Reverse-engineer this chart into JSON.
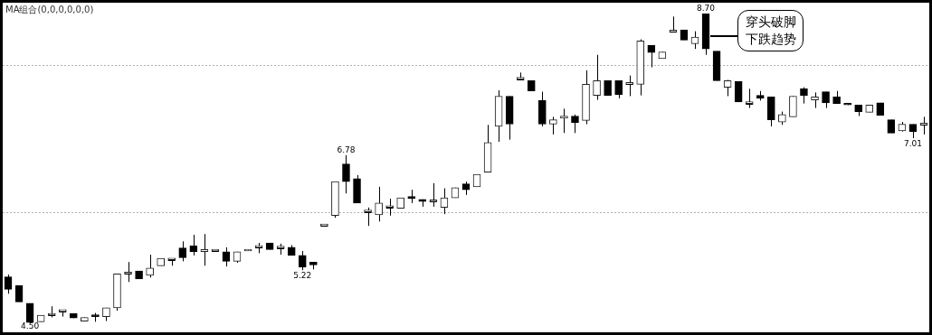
{
  "chart_data": {
    "type": "candlestick",
    "title": "MA组合(0,0,0,0,0,0)",
    "categories": [
      null,
      null,
      null,
      null,
      null,
      null,
      null,
      null,
      null,
      null,
      null,
      null,
      null,
      null,
      null,
      null,
      null,
      null,
      null,
      null,
      null,
      null,
      null,
      null,
      null,
      null,
      null,
      null,
      null,
      null,
      null,
      null,
      null,
      null,
      null,
      null,
      null,
      null,
      null,
      null,
      null,
      null,
      null,
      null,
      null,
      null,
      null,
      null,
      null,
      null,
      null,
      null,
      null,
      null,
      null,
      null,
      null,
      null,
      null,
      null,
      null,
      null,
      null,
      null,
      null,
      null,
      null,
      null,
      null,
      null,
      null,
      null,
      null,
      null,
      null,
      null,
      null,
      null,
      null,
      null,
      null,
      null,
      null,
      null,
      null
    ],
    "ohlc": [
      [
        5.13,
        5.16,
        4.9,
        4.96
      ],
      [
        5.01,
        5.01,
        4.79,
        4.79
      ],
      [
        4.77,
        4.77,
        4.5,
        4.51
      ],
      [
        4.52,
        4.61,
        4.52,
        4.61
      ],
      [
        4.61,
        4.73,
        4.58,
        4.61
      ],
      [
        4.66,
        4.67,
        4.59,
        4.66
      ],
      [
        4.63,
        4.63,
        4.57,
        4.57
      ],
      [
        4.53,
        4.58,
        4.53,
        4.58
      ],
      [
        4.61,
        4.64,
        4.52,
        4.59
      ],
      [
        4.59,
        4.71,
        4.53,
        4.71
      ],
      [
        4.71,
        5.17,
        4.67,
        5.17
      ],
      [
        5.17,
        5.33,
        5.06,
        5.17
      ],
      [
        5.21,
        5.21,
        5.1,
        5.1
      ],
      [
        5.15,
        5.43,
        5.12,
        5.25
      ],
      [
        5.28,
        5.38,
        5.28,
        5.38
      ],
      [
        5.36,
        5.36,
        5.28,
        5.36
      ],
      [
        5.52,
        5.61,
        5.34,
        5.39
      ],
      [
        5.55,
        5.7,
        5.42,
        5.47
      ],
      [
        5.47,
        5.71,
        5.28,
        5.5
      ],
      [
        5.48,
        5.48,
        5.48,
        5.48
      ],
      [
        5.47,
        5.53,
        5.27,
        5.34
      ],
      [
        5.34,
        5.47,
        5.32,
        5.47
      ],
      [
        5.48,
        5.5,
        5.48,
        5.5
      ],
      [
        5.53,
        5.59,
        5.45,
        5.53
      ],
      [
        5.59,
        5.59,
        5.5,
        5.5
      ],
      [
        5.52,
        5.58,
        5.43,
        5.52
      ],
      [
        5.53,
        5.56,
        5.42,
        5.42
      ],
      [
        5.42,
        5.48,
        5.22,
        5.26
      ],
      [
        5.33,
        5.33,
        5.23,
        5.29
      ],
      [
        5.82,
        5.82,
        5.82,
        5.82
      ],
      [
        5.96,
        6.42,
        5.93,
        6.42
      ],
      [
        6.66,
        6.78,
        6.26,
        6.42
      ],
      [
        6.46,
        6.51,
        6.13,
        6.13
      ],
      [
        6.01,
        6.07,
        5.82,
        6.01
      ],
      [
        5.97,
        6.35,
        5.88,
        6.13
      ],
      [
        6.07,
        6.19,
        5.96,
        6.07
      ],
      [
        6.06,
        6.2,
        6.06,
        6.2
      ],
      [
        6.22,
        6.31,
        6.13,
        6.19
      ],
      [
        6.18,
        6.18,
        6.08,
        6.15
      ],
      [
        6.15,
        6.4,
        6.08,
        6.15
      ],
      [
        6.07,
        6.33,
        5.98,
        6.2
      ],
      [
        6.2,
        6.34,
        6.2,
        6.34
      ],
      [
        6.39,
        6.42,
        6.24,
        6.31
      ],
      [
        6.35,
        6.52,
        6.35,
        6.52
      ],
      [
        6.55,
        7.19,
        6.55,
        6.95
      ],
      [
        7.17,
        7.66,
        6.96,
        7.58
      ],
      [
        7.58,
        7.58,
        6.99,
        7.2
      ],
      [
        7.81,
        7.9,
        7.81,
        7.81
      ],
      [
        7.79,
        7.79,
        7.65,
        7.65
      ],
      [
        7.52,
        7.64,
        7.17,
        7.2
      ],
      [
        7.2,
        7.3,
        7.06,
        7.26
      ],
      [
        7.28,
        7.41,
        7.08,
        7.31
      ],
      [
        7.31,
        7.33,
        7.08,
        7.22
      ],
      [
        7.25,
        7.93,
        7.2,
        7.74
      ],
      [
        7.59,
        8.14,
        7.53,
        7.79
      ],
      [
        7.79,
        7.79,
        7.59,
        7.59
      ],
      [
        7.79,
        7.79,
        7.55,
        7.6
      ],
      [
        7.74,
        7.86,
        7.58,
        7.74
      ],
      [
        7.74,
        8.35,
        7.59,
        8.33
      ],
      [
        8.27,
        8.27,
        7.97,
        8.17
      ],
      [
        8.09,
        8.18,
        8.09,
        8.18
      ],
      [
        8.45,
        8.66,
        8.45,
        8.45
      ],
      [
        8.48,
        8.48,
        8.34,
        8.34
      ],
      [
        8.29,
        8.46,
        8.22,
        8.38
      ],
      [
        8.7,
        8.7,
        8.14,
        8.22
      ],
      [
        8.19,
        8.19,
        7.79,
        7.79
      ],
      [
        7.7,
        7.8,
        7.58,
        7.79
      ],
      [
        7.78,
        7.78,
        7.5,
        7.5
      ],
      [
        7.48,
        7.68,
        7.42,
        7.48
      ],
      [
        7.59,
        7.65,
        7.52,
        7.55
      ],
      [
        7.57,
        7.57,
        7.17,
        7.26
      ],
      [
        7.23,
        7.37,
        7.19,
        7.33
      ],
      [
        7.3,
        7.58,
        7.3,
        7.58
      ],
      [
        7.68,
        7.7,
        7.48,
        7.59
      ],
      [
        7.53,
        7.63,
        7.42,
        7.57
      ],
      [
        7.64,
        7.64,
        7.42,
        7.49
      ],
      [
        7.57,
        7.65,
        7.48,
        7.48
      ],
      [
        7.48,
        7.48,
        7.46,
        7.46
      ],
      [
        7.46,
        7.46,
        7.31,
        7.37
      ],
      [
        7.36,
        7.46,
        7.36,
        7.46
      ],
      [
        7.49,
        7.49,
        7.32,
        7.32
      ],
      [
        7.26,
        7.26,
        7.08,
        7.08
      ],
      [
        7.11,
        7.23,
        7.1,
        7.2
      ],
      [
        7.2,
        7.2,
        7.01,
        7.1
      ],
      [
        7.19,
        7.3,
        7.06,
        7.19
      ]
    ],
    "yticks": [
      {
        "value": 6,
        "label": null
      },
      {
        "value": 8,
        "label": null
      }
    ],
    "grid": "y",
    "tick_labels": false,
    "annotations": [
      {
        "text": "8.70",
        "y": 8.7
      },
      {
        "text": "6.78",
        "y": 6.78
      },
      {
        "text": "5.22",
        "y": 5.22
      },
      {
        "text": "7.01",
        "y": 7.01
      },
      {
        "text": "4.50",
        "y": 4.5
      },
      "穿头破脚下跌趋势"
    ]
  }
}
